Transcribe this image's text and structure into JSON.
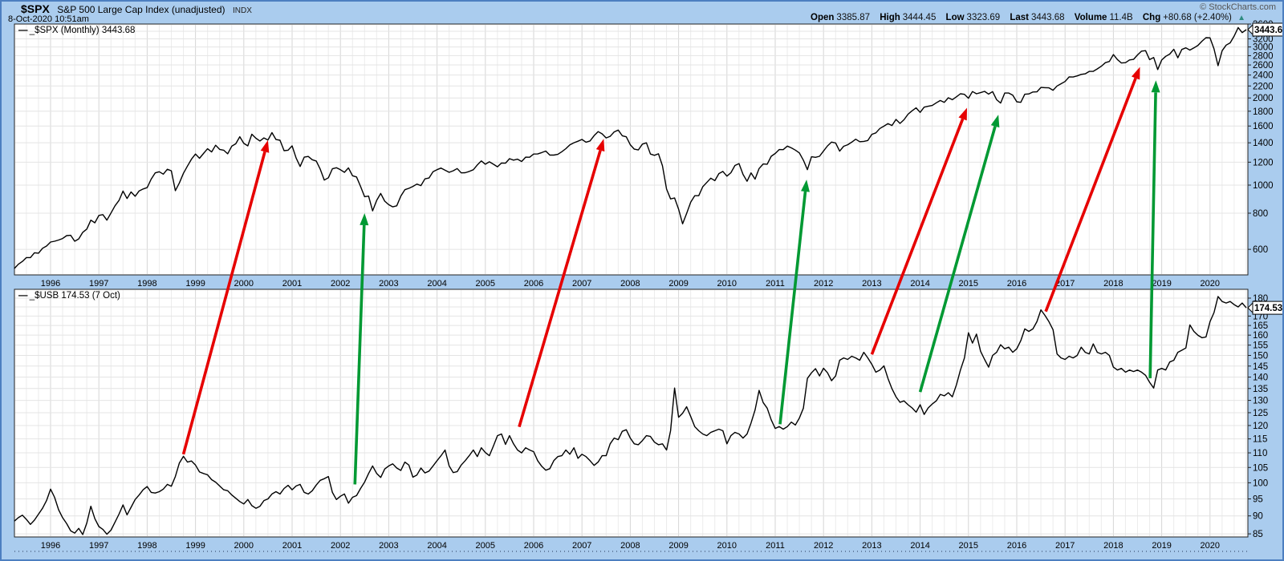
{
  "header": {
    "symbol": "$SPX",
    "title": "S&P 500 Large Cap Index (unadjusted)",
    "exchange": "INDX",
    "datetime": "8-Oct-2020 10:51am",
    "copyright": "© StockCharts.com",
    "quote": {
      "open_label": "Open",
      "open": "3385.87",
      "high_label": "High",
      "high": "3444.45",
      "low_label": "Low",
      "low": "3323.69",
      "last_label": "Last",
      "last": "3443.68",
      "volume_label": "Volume",
      "volume": "11.4B",
      "chg_label": "Chg",
      "chg": "+80.68 (+2.40%)",
      "up_triangle_icon": "▲"
    }
  },
  "colors": {
    "background": "#AACCEE",
    "plot_background": "#FFFFFF",
    "series_line": "#000000",
    "grid_minor": "#ececec",
    "grid_year": "#d6d6d6",
    "grid_horizontal": "#e4e4e4",
    "plot_border": "#222222",
    "arrow_red": "#e60000",
    "arrow_green": "#009933",
    "change_up": "#2e8b80"
  },
  "x_axis": {
    "start_year_fraction": 1995.25,
    "step_months": 1,
    "year_labels": [
      "1996",
      "1997",
      "1998",
      "1999",
      "2000",
      "2001",
      "2002",
      "2003",
      "2004",
      "2005",
      "2006",
      "2007",
      "2008",
      "2009",
      "2010",
      "2011",
      "2012",
      "2013",
      "2014",
      "2015",
      "2016",
      "2017",
      "2018",
      "2019",
      "2020"
    ]
  },
  "chart_data": [
    {
      "type": "line",
      "panel": "top",
      "legend": "_$SPX (Monthly) 3443.68",
      "symbol": "_$SPX",
      "interval": "Monthly",
      "last_price": 3443.68,
      "last_price_label": "3443.68",
      "scale": "log",
      "ylim": [
        490,
        3700
      ],
      "ytick_labels": [
        3600,
        3200,
        3000,
        2800,
        2600,
        2400,
        2200,
        2000,
        1800,
        1600,
        1400,
        1200,
        1000,
        800,
        600
      ],
      "ygrid_values": [
        600,
        800,
        1000,
        1200,
        1400,
        1600,
        1800,
        2000,
        2200,
        2400,
        2600,
        2800,
        3000,
        3200,
        3400,
        3600
      ],
      "values": [
        515,
        533,
        545,
        562,
        562,
        584,
        582,
        605,
        616,
        636,
        640,
        646,
        654,
        669,
        671,
        640,
        652,
        687,
        705,
        757,
        741,
        786,
        791,
        757,
        801,
        848,
        885,
        954,
        899,
        947,
        915,
        955,
        970,
        980,
        1049,
        1102,
        1112,
        1091,
        1134,
        1121,
        957,
        1017,
        1099,
        1164,
        1229,
        1280,
        1238,
        1286,
        1335,
        1302,
        1373,
        1329,
        1320,
        1283,
        1363,
        1389,
        1469,
        1394,
        1366,
        1499,
        1452,
        1421,
        1455,
        1431,
        1518,
        1437,
        1429,
        1315,
        1320,
        1366,
        1240,
        1160,
        1249,
        1256,
        1224,
        1211,
        1134,
        1041,
        1060,
        1139,
        1148,
        1130,
        1107,
        1147,
        1077,
        1067,
        990,
        912,
        916,
        815,
        886,
        936,
        880,
        856,
        841,
        848,
        917,
        964,
        975,
        990,
        1008,
        996,
        1051,
        1058,
        1112,
        1131,
        1145,
        1126,
        1107,
        1121,
        1141,
        1102,
        1104,
        1115,
        1130,
        1174,
        1212,
        1181,
        1204,
        1181,
        1157,
        1192,
        1191,
        1234,
        1220,
        1229,
        1207,
        1249,
        1248,
        1280,
        1281,
        1295,
        1311,
        1270,
        1270,
        1277,
        1304,
        1336,
        1378,
        1401,
        1418,
        1438,
        1407,
        1421,
        1482,
        1531,
        1503,
        1455,
        1474,
        1527,
        1549,
        1481,
        1468,
        1379,
        1331,
        1323,
        1386,
        1400,
        1280,
        1267,
        1283,
        1166,
        969,
        896,
        903,
        826,
        735,
        798,
        873,
        919,
        919,
        987,
        1021,
        1057,
        1036,
        1096,
        1115,
        1074,
        1104,
        1169,
        1187,
        1089,
        1031,
        1102,
        1049,
        1141,
        1183,
        1181,
        1258,
        1286,
        1327,
        1326,
        1364,
        1345,
        1321,
        1292,
        1219,
        1131,
        1253,
        1247,
        1258,
        1312,
        1366,
        1408,
        1398,
        1310,
        1362,
        1379,
        1407,
        1441,
        1412,
        1416,
        1426,
        1498,
        1515,
        1569,
        1598,
        1631,
        1606,
        1686,
        1633,
        1682,
        1757,
        1806,
        1848,
        1783,
        1859,
        1872,
        1884,
        1924,
        1960,
        1931,
        2003,
        1972,
        2018,
        2068,
        2059,
        1995,
        2105,
        2068,
        2086,
        2107,
        2063,
        2104,
        1972,
        1920,
        2079,
        2080,
        2044,
        1940,
        1932,
        2060,
        2065,
        2097,
        2099,
        2174,
        2171,
        2168,
        2126,
        2199,
        2239,
        2279,
        2364,
        2363,
        2384,
        2412,
        2423,
        2470,
        2472,
        2519,
        2575,
        2648,
        2674,
        2824,
        2714,
        2641,
        2648,
        2705,
        2718,
        2816,
        2902,
        2914,
        2712,
        2760,
        2507,
        2704,
        2784,
        2834,
        2946,
        2752,
        2942,
        2980,
        2926,
        2977,
        3038,
        3141,
        3231,
        3226,
        2954,
        2585,
        2912,
        3044,
        3100,
        3271,
        3500,
        3363,
        3444
      ]
    },
    {
      "type": "line",
      "panel": "bottom",
      "legend": "_$USB 174.53 (7 Oct)",
      "symbol": "_$USB",
      "last_price": 174.53,
      "last_price_label": "174.53",
      "scale": "log",
      "ylim": [
        83,
        183
      ],
      "ytick_labels": [
        180,
        170,
        165,
        160,
        155,
        150,
        145,
        140,
        135,
        130,
        125,
        120,
        115,
        110,
        105,
        100,
        95,
        90,
        85
      ],
      "ygrid_values": [
        85,
        90,
        95,
        100,
        105,
        110,
        115,
        120,
        125,
        130,
        135,
        140,
        145,
        150,
        155,
        160,
        165,
        170,
        175,
        180
      ],
      "values": [
        88.5,
        89.5,
        90.2,
        89.0,
        87.6,
        88.8,
        90.5,
        92.2,
        94.5,
        98.0,
        95.5,
        91.8,
        89.5,
        87.8,
        85.8,
        85.2,
        86.5,
        84.8,
        88.0,
        92.8,
        89.2,
        87.0,
        86.2,
        84.9,
        86.0,
        88.2,
        90.5,
        93.2,
        90.3,
        92.5,
        94.8,
        96.2,
        97.8,
        98.8,
        97.0,
        96.8,
        97.2,
        98.0,
        99.5,
        98.9,
        102.0,
        106.5,
        108.8,
        106.8,
        107.2,
        105.8,
        103.5,
        103.0,
        102.6,
        101.0,
        100.2,
        99.0,
        97.8,
        97.5,
        96.2,
        95.2,
        94.2,
        93.5,
        94.8,
        93.0,
        92.2,
        92.8,
        94.5,
        95.0,
        96.5,
        97.2,
        96.5,
        98.2,
        99.2,
        97.8,
        99.0,
        99.5,
        97.0,
        96.5,
        97.5,
        99.3,
        100.8,
        101.3,
        102.0,
        97.0,
        94.8,
        95.8,
        96.5,
        93.7,
        95.5,
        96.0,
        98.2,
        100.2,
        103.0,
        105.5,
        103.0,
        101.7,
        104.5,
        105.5,
        106.2,
        104.8,
        104.0,
        106.8,
        105.8,
        101.8,
        102.5,
        104.8,
        103.2,
        103.8,
        105.5,
        107.3,
        109.0,
        111.0,
        105.5,
        103.3,
        103.6,
        105.8,
        107.3,
        109.0,
        111.0,
        108.7,
        111.8,
        110.1,
        109.0,
        112.4,
        116.2,
        116.8,
        113.0,
        116.2,
        113.2,
        111.0,
        110.0,
        111.8,
        111.0,
        110.4,
        107.3,
        105.4,
        104.1,
        104.6,
        107.3,
        108.7,
        109.0,
        111.0,
        109.5,
        111.8,
        108.1,
        109.5,
        108.7,
        107.3,
        105.7,
        106.8,
        109.0,
        109.0,
        113.2,
        115.3,
        114.7,
        117.8,
        118.4,
        115.3,
        113.2,
        112.9,
        114.4,
        116.2,
        115.9,
        113.8,
        112.9,
        113.2,
        111.0,
        118.0,
        135.2,
        123.2,
        124.8,
        127.4,
        123.5,
        119.6,
        118.0,
        116.8,
        116.2,
        117.4,
        118.0,
        118.6,
        118.0,
        113.2,
        116.2,
        117.4,
        116.8,
        115.3,
        116.8,
        121.0,
        126.1,
        134.2,
        129.1,
        126.8,
        122.2,
        118.9,
        119.6,
        118.6,
        119.6,
        121.3,
        120.2,
        122.9,
        126.8,
        139.4,
        141.9,
        143.8,
        140.5,
        144.0,
        141.9,
        138.4,
        140.5,
        147.7,
        148.8,
        148.1,
        149.6,
        148.8,
        147.7,
        151.5,
        148.8,
        145.8,
        142.2,
        143.2,
        145.1,
        139.4,
        134.9,
        131.5,
        129.2,
        129.8,
        128.2,
        126.9,
        125.2,
        128.2,
        124.3,
        126.9,
        128.5,
        129.8,
        132.5,
        131.9,
        133.2,
        131.5,
        136.6,
        143.2,
        148.8,
        161.2,
        156.0,
        160.5,
        152.0,
        148.1,
        144.5,
        150.0,
        151.5,
        155.2,
        153.2,
        154.0,
        151.5,
        153.2,
        157.2,
        163.2,
        161.9,
        163.2,
        167.0,
        173.4,
        170.4,
        167.0,
        162.8,
        150.7,
        148.8,
        148.1,
        149.6,
        148.8,
        150.0,
        154.0,
        151.5,
        150.7,
        155.6,
        151.5,
        150.7,
        151.5,
        150.0,
        144.5,
        143.2,
        143.9,
        142.2,
        143.2,
        142.5,
        143.2,
        142.2,
        140.8,
        137.7,
        135.2,
        143.2,
        143.9,
        143.2,
        146.9,
        147.7,
        151.5,
        152.5,
        153.6,
        165.3,
        161.9,
        159.9,
        158.7,
        159.1,
        167.0,
        171.9,
        180.9,
        178.1,
        177.2,
        178.1,
        176.3,
        175.0,
        177.2,
        174.53
      ]
    }
  ],
  "arrows": [
    {
      "color_key": "arrow_red",
      "from": {
        "panel": "bottom",
        "year": 1998.75,
        "value": 109.5
      },
      "to": {
        "panel": "top",
        "year": 2000.5,
        "value": 1430
      }
    },
    {
      "color_key": "arrow_green",
      "from": {
        "panel": "bottom",
        "year": 2002.3,
        "value": 99.5
      },
      "to": {
        "panel": "top",
        "year": 2002.5,
        "value": 800
      }
    },
    {
      "color_key": "arrow_red",
      "from": {
        "panel": "bottom",
        "year": 2005.7,
        "value": 119.5
      },
      "to": {
        "panel": "top",
        "year": 2007.45,
        "value": 1445
      }
    },
    {
      "color_key": "arrow_green",
      "from": {
        "panel": "bottom",
        "year": 2011.1,
        "value": 120.5
      },
      "to": {
        "panel": "top",
        "year": 2011.65,
        "value": 1045
      }
    },
    {
      "color_key": "arrow_red",
      "from": {
        "panel": "bottom",
        "year": 2013.0,
        "value": 150.5
      },
      "to": {
        "panel": "top",
        "year": 2014.97,
        "value": 1850
      }
    },
    {
      "color_key": "arrow_green",
      "from": {
        "panel": "bottom",
        "year": 2014.0,
        "value": 133.5
      },
      "to": {
        "panel": "top",
        "year": 2015.62,
        "value": 1750
      }
    },
    {
      "color_key": "arrow_red",
      "from": {
        "panel": "bottom",
        "year": 2016.6,
        "value": 172.5
      },
      "to": {
        "panel": "top",
        "year": 2018.55,
        "value": 2560
      }
    },
    {
      "color_key": "arrow_green",
      "from": {
        "panel": "bottom",
        "year": 2018.76,
        "value": 139.5
      },
      "to": {
        "panel": "top",
        "year": 2018.88,
        "value": 2300
      }
    }
  ]
}
